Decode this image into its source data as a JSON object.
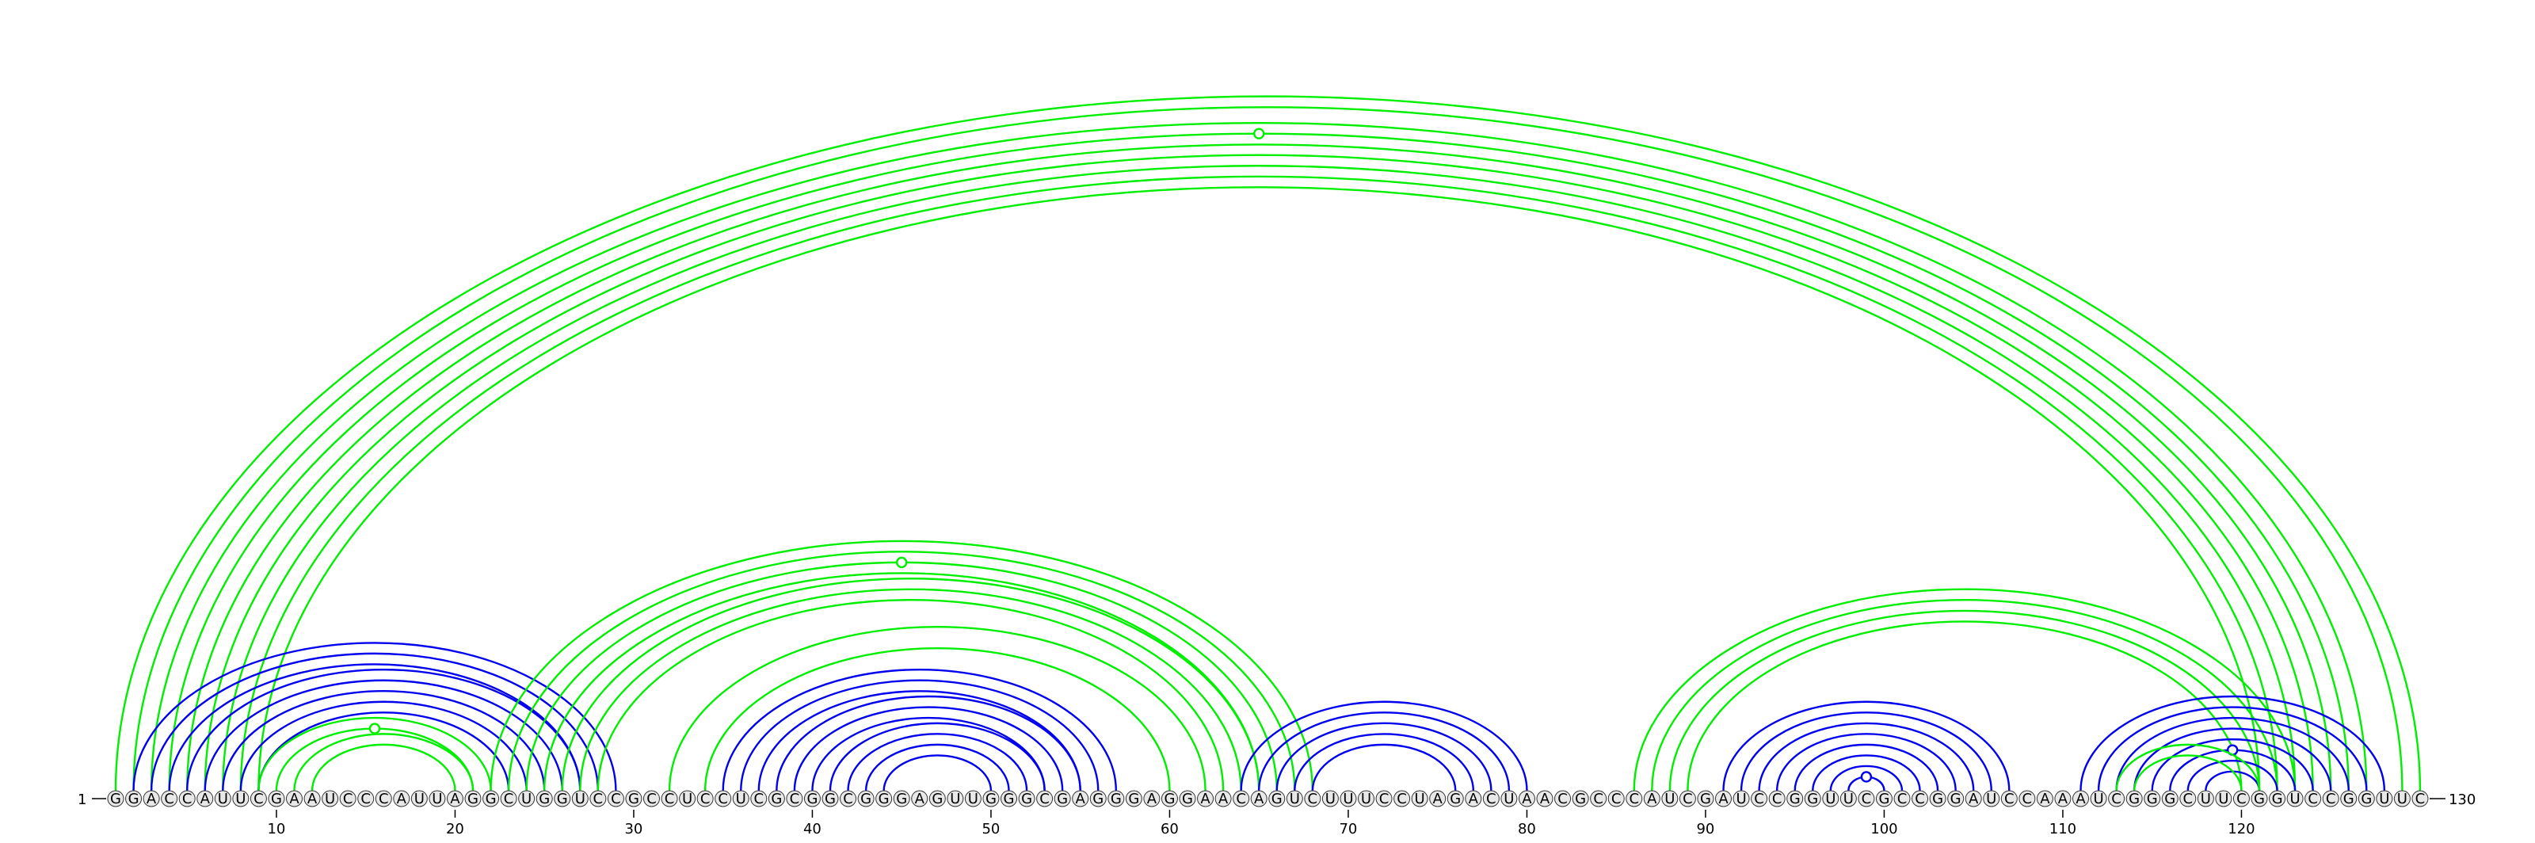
{
  "diagram": {
    "type": "rna-arc-diagram",
    "sequence": "GGACCAUUCGAAUCCCAUUAGGCUGGUCCGCCUCCUCGCGGCGGGAGUUGGGCGAGGGAGGAACAGUCUUUCCUAGACUAACGCCCAUCGAUCCGGUUCGCCGGAUCCAAAUCGGGCUUCGGUCCGGUUC",
    "length": 130,
    "start_label": "1",
    "end_label": "130",
    "tick_labels": [
      "10",
      "20",
      "30",
      "40",
      "50",
      "60",
      "70",
      "80",
      "90",
      "100",
      "110",
      "120"
    ],
    "colors": {
      "shared_pair": "#00ee00",
      "predicted_pair": "#0000ee",
      "nucleotide_fill": "#e8e8e8",
      "axis": "#000000"
    },
    "arc_groups": [
      {
        "color": "green",
        "pairs": [
          [
            1,
            130
          ],
          [
            2,
            129
          ],
          [
            3,
            127
          ],
          [
            4,
            126
          ],
          [
            5,
            125
          ],
          [
            6,
            124
          ],
          [
            7,
            123
          ],
          [
            8,
            122
          ],
          [
            9,
            121
          ]
        ],
        "marker_on": [
          4,
          126
        ]
      },
      {
        "color": "blue",
        "pairs": [
          [
            2,
            29
          ],
          [
            3,
            28
          ],
          [
            4,
            27
          ],
          [
            5,
            27
          ],
          [
            6,
            26
          ],
          [
            7,
            25
          ],
          [
            8,
            24
          ],
          [
            9,
            23
          ]
        ]
      },
      {
        "color": "green",
        "pairs": [
          [
            9,
            22
          ],
          [
            10,
            21
          ],
          [
            11,
            21
          ],
          [
            12,
            20
          ]
        ],
        "marker_on": [
          10,
          21
        ]
      },
      {
        "color": "green",
        "pairs": [
          [
            22,
            68
          ],
          [
            23,
            67
          ],
          [
            24,
            66
          ],
          [
            25,
            65
          ],
          [
            26,
            65
          ],
          [
            27,
            64
          ],
          [
            28,
            63
          ],
          [
            32,
            62
          ]
        ],
        "marker_on": [
          24,
          66
        ]
      },
      {
        "color": "green",
        "pairs": [
          [
            34,
            60
          ]
        ]
      },
      {
        "color": "blue",
        "pairs": [
          [
            35,
            57
          ],
          [
            36,
            56
          ],
          [
            37,
            55
          ],
          [
            38,
            55
          ],
          [
            39,
            54
          ],
          [
            40,
            53
          ],
          [
            41,
            53
          ],
          [
            42,
            52
          ],
          [
            43,
            51
          ],
          [
            44,
            50
          ]
        ]
      },
      {
        "color": "blue",
        "pairs": [
          [
            64,
            80
          ],
          [
            65,
            79
          ],
          [
            66,
            78
          ],
          [
            67,
            77
          ],
          [
            68,
            76
          ]
        ]
      },
      {
        "color": "green",
        "pairs": [
          [
            86,
            123
          ],
          [
            87,
            122
          ],
          [
            88,
            121
          ],
          [
            89,
            120
          ]
        ]
      },
      {
        "color": "blue",
        "pairs": [
          [
            91,
            107
          ],
          [
            92,
            106
          ],
          [
            93,
            105
          ],
          [
            94,
            104
          ],
          [
            95,
            103
          ],
          [
            96,
            102
          ],
          [
            97,
            101
          ],
          [
            98,
            100
          ]
        ],
        "marker_on": [
          98,
          100
        ]
      },
      {
        "color": "blue",
        "pairs": [
          [
            111,
            128
          ],
          [
            112,
            127
          ],
          [
            113,
            126
          ],
          [
            114,
            125
          ],
          [
            115,
            124
          ],
          [
            116,
            123
          ],
          [
            117,
            122
          ],
          [
            118,
            121
          ]
        ],
        "marker_on": [
          116,
          123
        ]
      },
      {
        "color": "green",
        "pairs": [
          [
            113,
            121
          ],
          [
            114,
            120
          ]
        ]
      }
    ]
  }
}
